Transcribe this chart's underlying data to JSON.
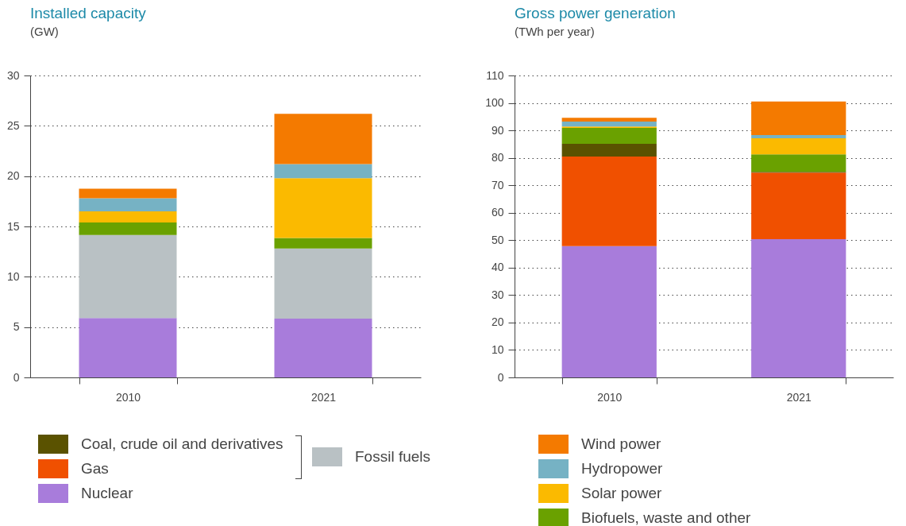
{
  "chart_data": [
    {
      "type": "bar",
      "title": "Installed capacity",
      "subtitle": "(GW)",
      "categories": [
        "2010",
        "2021"
      ],
      "stacked": true,
      "ylim": [
        0,
        30
      ],
      "yticks": [
        0,
        5,
        10,
        15,
        20,
        25,
        30
      ],
      "grid": "y",
      "legend": "bottom",
      "series": [
        {
          "color": "#a87cdb",
          "values": [
            5.9,
            5.85
          ]
        },
        {
          "name": "Fossil fuels",
          "color": "#b9c1c4",
          "values": [
            8.25,
            6.95
          ]
        },
        {
          "color": "#6aa100",
          "values": [
            1.25,
            1.05
          ]
        },
        {
          "color": "#fbba00",
          "values": [
            1.1,
            5.95
          ]
        },
        {
          "color": "#76b2c4",
          "values": [
            1.3,
            1.4
          ]
        },
        {
          "color": "#f47a00",
          "values": [
            0.95,
            5.0
          ]
        }
      ]
    },
    {
      "type": "bar",
      "title": "Gross power generation",
      "subtitle": "(TWh per year)",
      "categories": [
        "2010",
        "2021"
      ],
      "stacked": true,
      "ylim": [
        0,
        110
      ],
      "yticks": [
        0,
        10,
        20,
        30,
        40,
        50,
        60,
        70,
        80,
        90,
        100,
        110
      ],
      "grid": "y",
      "legend": "bottom",
      "series": [
        {
          "name": "Nuclear",
          "color": "#a87cdb",
          "values": [
            47.8,
            50.4
          ]
        },
        {
          "name": "Gas",
          "color": "#f05000",
          "values": [
            32.7,
            24.2
          ]
        },
        {
          "name": "Coal, crude oil and derivatives",
          "color": "#5a5200",
          "values": [
            4.6,
            0.3
          ]
        },
        {
          "name": "Biofuels, waste and other",
          "color": "#6aa100",
          "values": [
            5.8,
            6.4
          ]
        },
        {
          "name": "Solar power",
          "color": "#fbba00",
          "values": [
            0.5,
            5.8
          ]
        },
        {
          "name": "Hydropower",
          "color": "#76b2c4",
          "values": [
            1.8,
            1.2
          ]
        },
        {
          "name": "Wind power",
          "color": "#f47a00",
          "values": [
            1.4,
            12.2
          ]
        }
      ]
    }
  ]
}
